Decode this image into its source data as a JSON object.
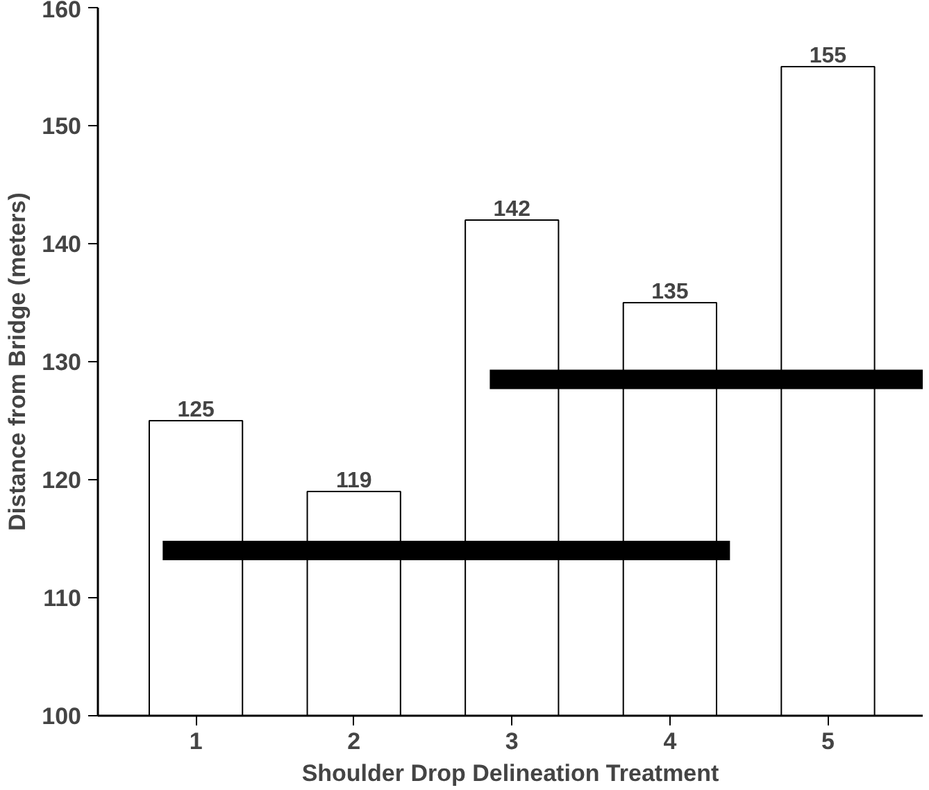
{
  "chart_data": {
    "type": "bar",
    "xlabel": "Shoulder Drop Delineation Treatment",
    "ylabel": "Distance from Bridge (meters)",
    "x": [
      1,
      2,
      3,
      4,
      5
    ],
    "xlim": [
      0.38,
      5.6
    ],
    "xticks": [
      1,
      2,
      3,
      4,
      5
    ],
    "ylim": [
      100,
      160
    ],
    "yticks": [
      100,
      110,
      120,
      130,
      140,
      150,
      160
    ],
    "series": [
      {
        "color": "#ffffff",
        "values": [
          125,
          119,
          142,
          135,
          155
        ],
        "value_labels": [
          "125",
          "119",
          "142",
          "135",
          "155"
        ]
      },
      {
        "type": "line",
        "color": "#000000",
        "x": [
          0.79,
          4.38
        ],
        "values": [
          114,
          114
        ]
      },
      {
        "type": "line",
        "color": "#000000",
        "x": [
          2.86,
          5.6
        ],
        "values": [
          128.5,
          128.5
        ]
      }
    ],
    "grid": false
  }
}
